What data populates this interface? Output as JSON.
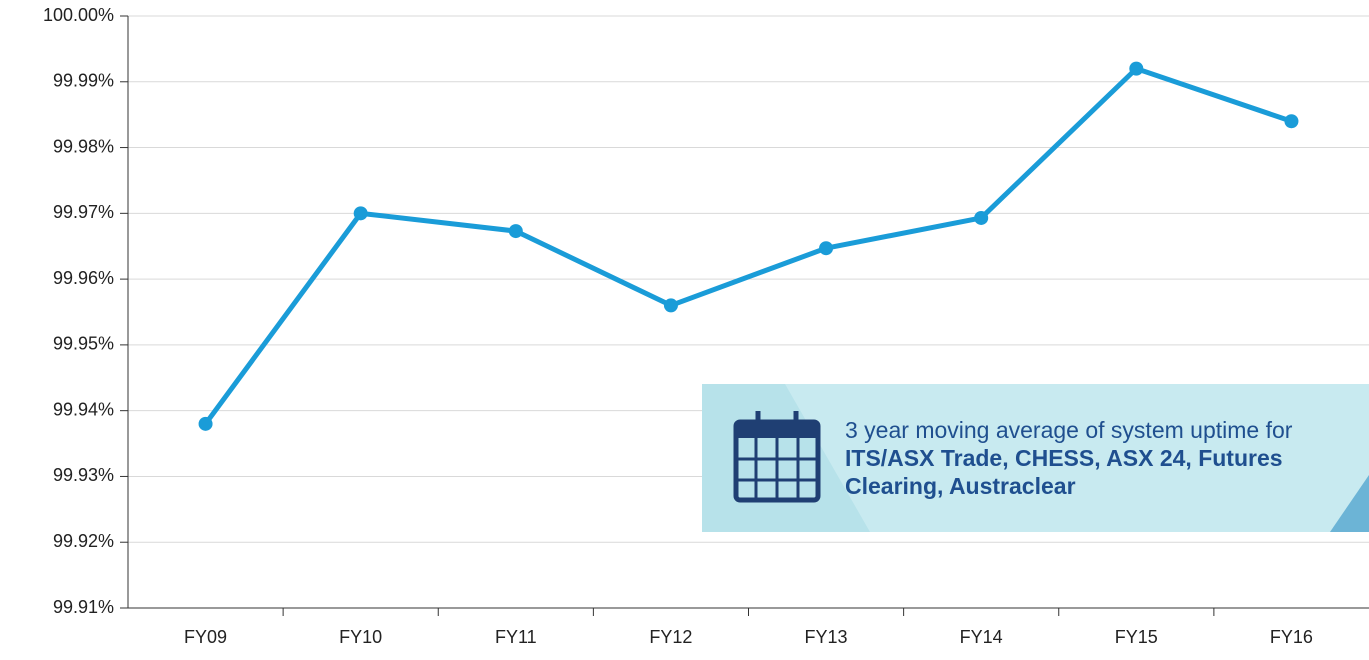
{
  "chart_data": {
    "type": "line",
    "categories": [
      "FY09",
      "FY10",
      "FY11",
      "FY12",
      "FY13",
      "FY14",
      "FY15",
      "FY16"
    ],
    "series": [
      {
        "color": "#1a9cd8",
        "values": [
          99.938,
          99.97,
          99.9673,
          99.956,
          99.9647,
          99.9693,
          99.992,
          99.984
        ]
      }
    ],
    "ylim": [
      99.91,
      100.0
    ],
    "yticks": [
      {
        "value": 99.91,
        "label": "99.91%"
      },
      {
        "value": 99.92,
        "label": "99.92%"
      },
      {
        "value": 99.93,
        "label": "99.93%"
      },
      {
        "value": 99.94,
        "label": "99.94%"
      },
      {
        "value": 99.95,
        "label": "99.95%"
      },
      {
        "value": 99.96,
        "label": "99.96%"
      },
      {
        "value": 99.97,
        "label": "99.97%"
      },
      {
        "value": 99.98,
        "label": "99.98%"
      },
      {
        "value": 99.99,
        "label": "99.99%"
      },
      {
        "value": 100.0,
        "label": "100.00%"
      }
    ],
    "grid": true,
    "annotation": {
      "text": "3 year moving average of system uptime for",
      "bold": "ITS/ASX Trade, CHESS, ASX 24, Futures Clearing, Austraclear"
    }
  }
}
